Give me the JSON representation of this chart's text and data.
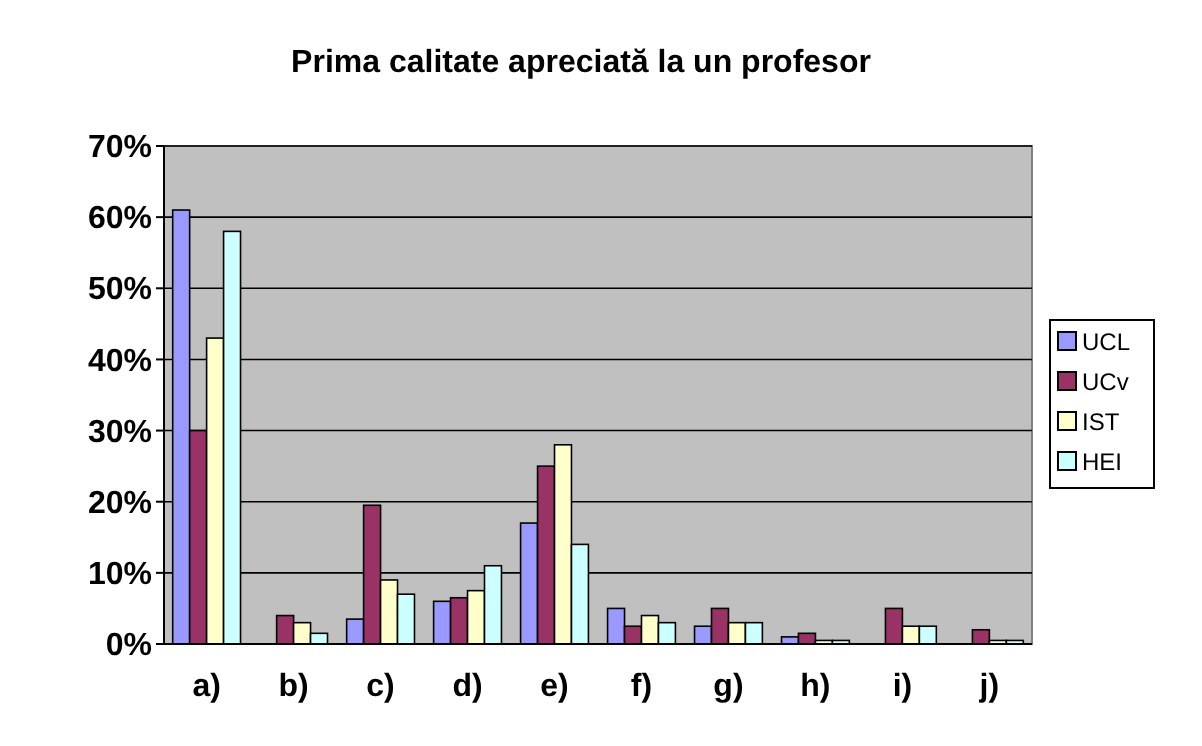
{
  "chart_data": {
    "type": "bar",
    "title": "Prima calitate apreciată la un profesor",
    "categories": [
      "a)",
      "b)",
      "c)",
      "d)",
      "e)",
      "f)",
      "g)",
      "h)",
      "i)",
      "j)"
    ],
    "series": [
      {
        "name": "UCL",
        "color": "#9999ff",
        "values": [
          61,
          0,
          3.5,
          6,
          17,
          5,
          2.5,
          1,
          0,
          0
        ]
      },
      {
        "name": "UCv",
        "color": "#993366",
        "values": [
          30,
          4,
          19.5,
          6.5,
          25,
          2.5,
          5,
          1.5,
          5,
          2
        ]
      },
      {
        "name": "IST",
        "color": "#ffffcc",
        "values": [
          43,
          3,
          9,
          7.5,
          28,
          4,
          3,
          0.5,
          2.5,
          0.5
        ]
      },
      {
        "name": "HEI",
        "color": "#ccffff",
        "values": [
          58,
          1.5,
          7,
          11,
          14,
          3,
          3,
          0.5,
          2.5,
          0.5
        ]
      }
    ],
    "ylim": [
      0,
      70
    ],
    "yticks": [
      {
        "value": 0,
        "label": "0%"
      },
      {
        "value": 10,
        "label": "10%"
      },
      {
        "value": 20,
        "label": "20%"
      },
      {
        "value": 30,
        "label": "30%"
      },
      {
        "value": 40,
        "label": "40%"
      },
      {
        "value": 50,
        "label": "50%"
      },
      {
        "value": 60,
        "label": "60%"
      },
      {
        "value": 70,
        "label": "70%"
      }
    ],
    "grid": "y",
    "legend": "right"
  }
}
